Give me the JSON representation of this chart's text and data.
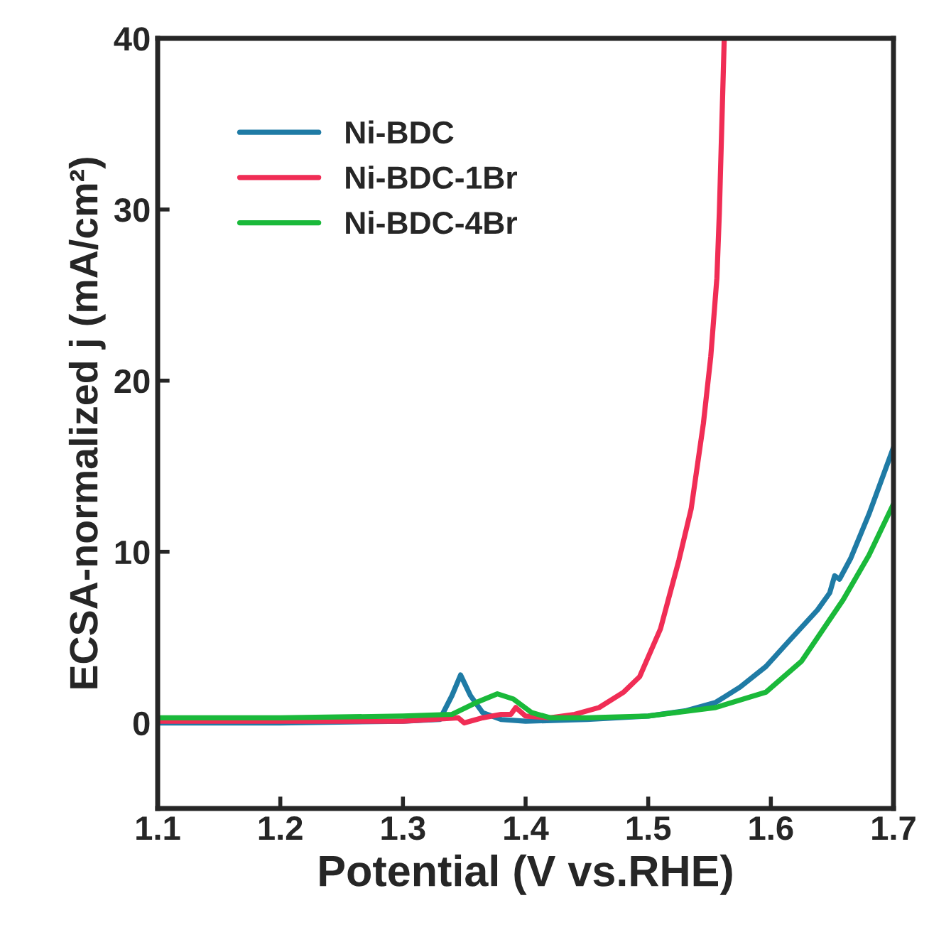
{
  "chart_data": {
    "type": "line",
    "xlabel": "Potential (V vs.RHE)",
    "ylabel": "ECSA-normalized j (mA/cm²)",
    "xlim": [
      1.1,
      1.7
    ],
    "ylim": [
      -5,
      40
    ],
    "xticks": [
      1.1,
      1.2,
      1.3,
      1.4,
      1.5,
      1.6,
      1.7
    ],
    "yticks": [
      0,
      10,
      20,
      30,
      40
    ],
    "grid": false,
    "legend": "top left",
    "line_style": "solid",
    "marker": "none",
    "series": [
      {
        "name": "Ni-BDC",
        "color": "#1f7ba5",
        "x": [
          1.1,
          1.2,
          1.3,
          1.33,
          1.34,
          1.347,
          1.355,
          1.365,
          1.38,
          1.4,
          1.45,
          1.5,
          1.53,
          1.555,
          1.575,
          1.596,
          1.615,
          1.638,
          1.648,
          1.652,
          1.656,
          1.665,
          1.68,
          1.7
        ],
        "values": [
          0.0,
          0.0,
          0.1,
          0.2,
          1.6,
          2.8,
          1.6,
          0.6,
          0.2,
          0.1,
          0.2,
          0.4,
          0.7,
          1.2,
          2.1,
          3.3,
          4.8,
          6.6,
          7.6,
          8.6,
          8.4,
          9.6,
          12.2,
          16.1
        ]
      },
      {
        "name": "Ni-BDC-1Br",
        "color": "#f02d55",
        "x": [
          1.1,
          1.2,
          1.3,
          1.345,
          1.35,
          1.365,
          1.38,
          1.388,
          1.392,
          1.4,
          1.42,
          1.44,
          1.46,
          1.48,
          1.493,
          1.51,
          1.525,
          1.535,
          1.545,
          1.551,
          1.556,
          1.558,
          1.562
        ],
        "values": [
          0.1,
          0.1,
          0.1,
          0.3,
          0.0,
          0.3,
          0.5,
          0.5,
          0.9,
          0.4,
          0.3,
          0.5,
          0.9,
          1.8,
          2.7,
          5.5,
          9.5,
          12.5,
          17.5,
          21.4,
          26,
          29.8,
          40
        ]
      },
      {
        "name": "Ni-BDC-4Br",
        "color": "#1ab93a",
        "x": [
          1.1,
          1.2,
          1.3,
          1.34,
          1.36,
          1.377,
          1.39,
          1.405,
          1.42,
          1.45,
          1.5,
          1.555,
          1.596,
          1.625,
          1.659,
          1.68,
          1.7
        ],
        "values": [
          0.3,
          0.3,
          0.4,
          0.5,
          1.2,
          1.7,
          1.4,
          0.6,
          0.3,
          0.3,
          0.4,
          0.9,
          1.8,
          3.6,
          7.2,
          9.8,
          12.8
        ]
      }
    ]
  }
}
